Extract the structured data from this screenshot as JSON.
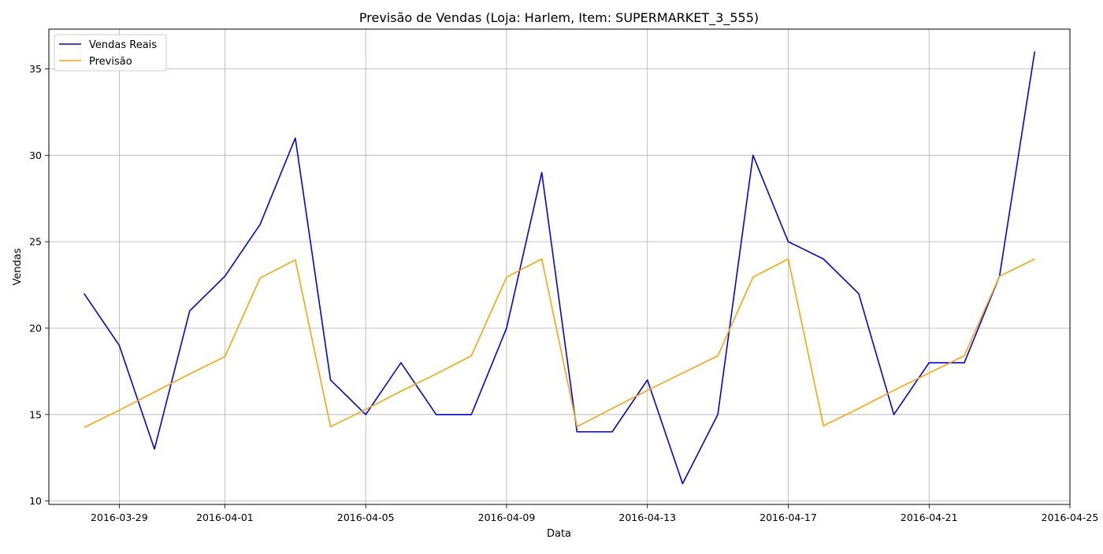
{
  "chart_data": {
    "type": "line",
    "title": "Previsão de Vendas (Loja: Harlem, Item: SUPERMARKET_3_555)",
    "xlabel": "Data",
    "ylabel": "Vendas",
    "x": [
      "2016-03-28",
      "2016-03-29",
      "2016-03-30",
      "2016-03-31",
      "2016-04-01",
      "2016-04-02",
      "2016-04-03",
      "2016-04-04",
      "2016-04-05",
      "2016-04-06",
      "2016-04-07",
      "2016-04-08",
      "2016-04-09",
      "2016-04-10",
      "2016-04-11",
      "2016-04-12",
      "2016-04-13",
      "2016-04-14",
      "2016-04-15",
      "2016-04-16",
      "2016-04-17",
      "2016-04-18",
      "2016-04-19",
      "2016-04-20",
      "2016-04-21",
      "2016-04-22",
      "2016-04-23",
      "2016-04-24"
    ],
    "xlim": [
      "2016-03-27",
      "2016-04-25"
    ],
    "xticks": [
      "2016-03-29",
      "2016-04-01",
      "2016-04-05",
      "2016-04-09",
      "2016-04-13",
      "2016-04-17",
      "2016-04-21",
      "2016-04-25"
    ],
    "ylim": [
      9.8,
      37.3
    ],
    "yticks": [
      10,
      15,
      20,
      25,
      30,
      35
    ],
    "grid": true,
    "legend_position": "top-left",
    "series": [
      {
        "name": "Vendas Reais",
        "color": "#0000ff",
        "values": [
          22,
          19,
          13,
          21,
          23,
          26,
          31,
          17,
          15,
          18,
          15,
          15,
          20,
          29,
          14,
          14,
          17,
          11,
          15,
          30,
          25,
          24,
          22,
          15,
          18,
          18,
          23,
          36
        ]
      },
      {
        "name": "Previsão",
        "color": "#ffa500",
        "values": [
          14.25,
          15.25,
          16.3,
          17.35,
          18.35,
          22.9,
          23.95,
          14.3,
          15.3,
          16.35,
          17.35,
          18.4,
          22.95,
          24.0,
          14.3,
          15.35,
          16.4,
          17.4,
          18.4,
          22.95,
          24.0,
          14.35,
          15.35,
          16.4,
          17.4,
          18.4,
          23.0,
          24.0
        ]
      }
    ]
  }
}
